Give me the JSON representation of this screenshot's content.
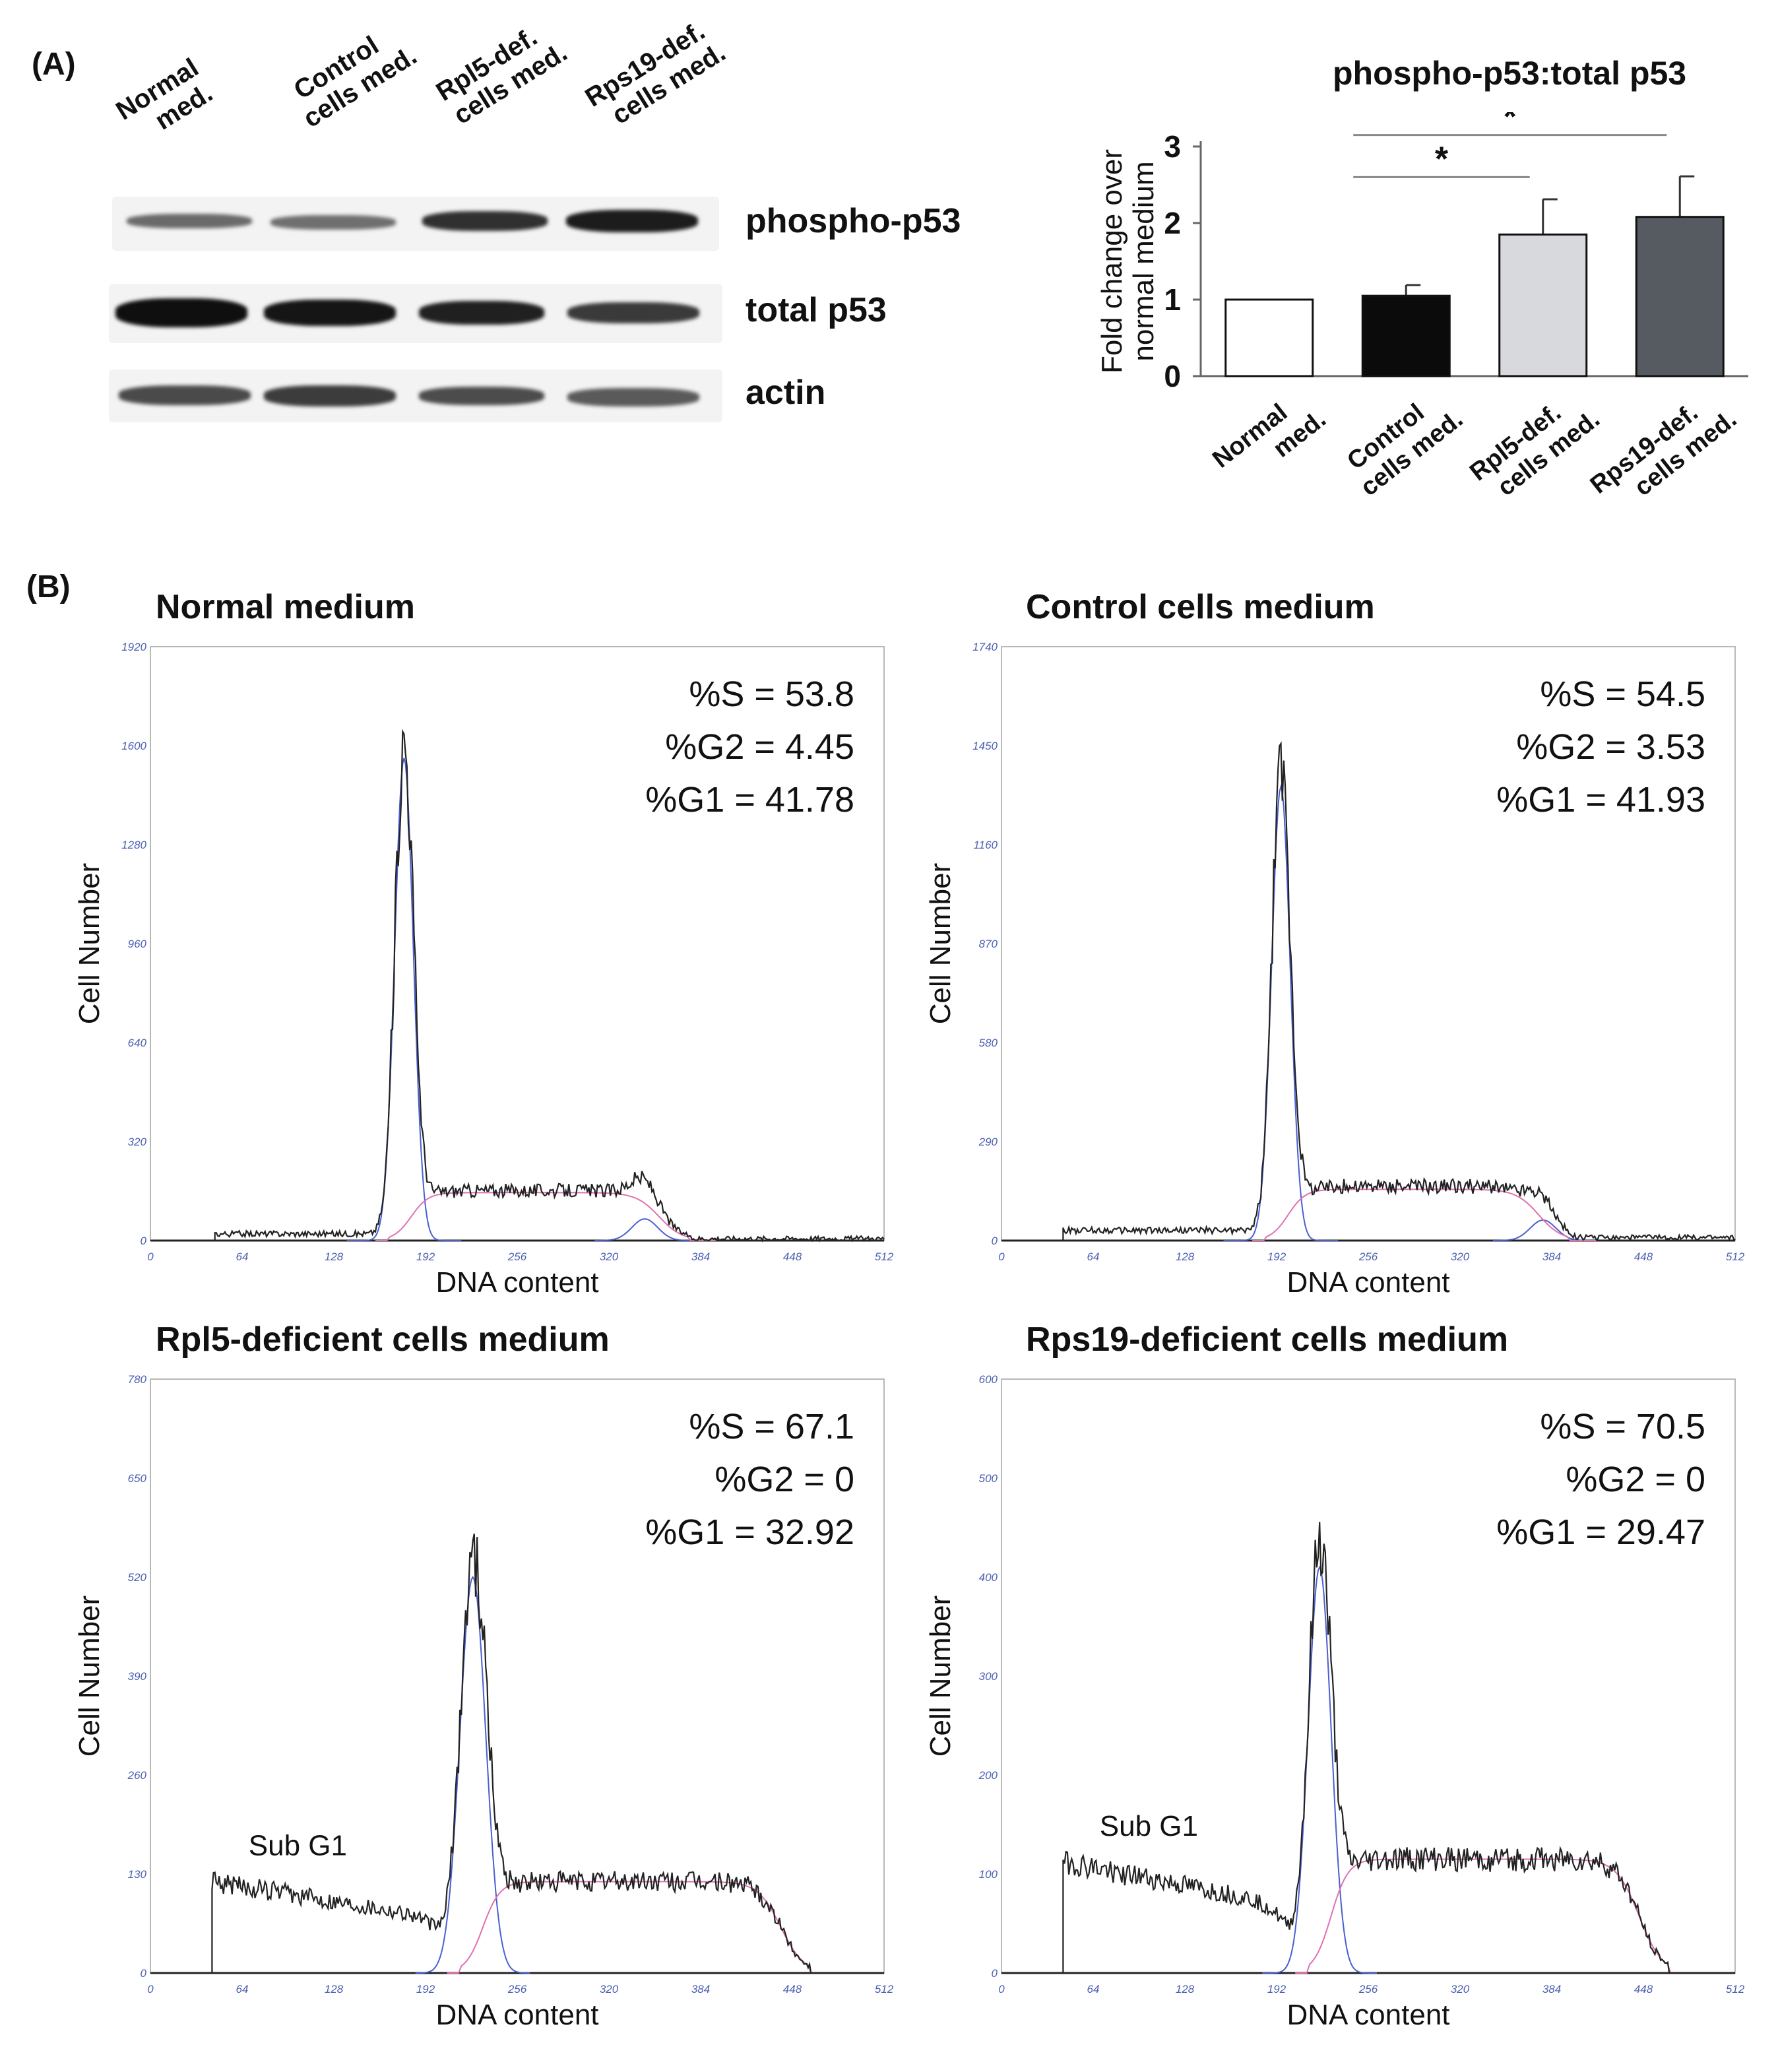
{
  "panel_a": {
    "label": "(A)",
    "western_blot": {
      "lanes": [
        {
          "line1": "Normal",
          "line2": "med."
        },
        {
          "line1": "Control",
          "line2": "cells med."
        },
        {
          "line1": "Rpl5-def.",
          "line2": "cells med."
        },
        {
          "line1": "Rps19-def.",
          "line2": "cells med."
        }
      ],
      "bands": [
        "phospho-p53",
        "total p53",
        "actin"
      ]
    }
  },
  "panel_b": {
    "label": "(B)"
  },
  "chart_data": [
    {
      "type": "bar",
      "title": "phospho-p53:total p53",
      "ylabel": "Fold change over normal medium",
      "ylabel_lines": [
        "Fold change over",
        "normal medium"
      ],
      "ylim": [
        0,
        3
      ],
      "yticks": [
        "0",
        "1",
        "2",
        "3"
      ],
      "categories": [
        {
          "line1": "Normal",
          "line2": "med."
        },
        {
          "line1": "Control",
          "line2": "cells med."
        },
        {
          "line1": "Rpl5-def.",
          "line2": "cells med."
        },
        {
          "line1": "Rps19-def.",
          "line2": "cells med."
        }
      ],
      "values": [
        1.0,
        1.05,
        1.85,
        2.08
      ],
      "errors": [
        0,
        0.14,
        0.46,
        0.53
      ],
      "colors": [
        "#ffffff",
        "#0b0b0b",
        "#d8d9dd",
        "#555b60"
      ],
      "significance": [
        {
          "from": 1,
          "to": 2,
          "label": "*",
          "level": 2.6
        },
        {
          "from": 1,
          "to": 3,
          "label": "*",
          "level": 3.15
        }
      ]
    },
    {
      "type": "line",
      "title": "Normal medium",
      "xlabel": "DNA content",
      "ylabel": "Cell Number",
      "xlim": [
        0,
        512
      ],
      "ylim": [
        0,
        1920
      ],
      "xticks": [
        "0",
        "64",
        "128",
        "192",
        "256",
        "320",
        "384",
        "448",
        "512"
      ],
      "yticks": [
        "0",
        "320",
        "640",
        "960",
        "1280",
        "1600",
        "1920"
      ],
      "stats": [
        "%S = 53.8",
        "%G2 = 4.45",
        "%G1 = 41.78"
      ],
      "subg1_label": "",
      "profile": {
        "start": 45,
        "base": 22,
        "subg1": 0,
        "g1_center": 177,
        "g1_sigma": 6.5,
        "g1_height": 1560,
        "s_level": 155,
        "s_start": 182,
        "s_end": 355,
        "g2_center": 345,
        "g2_height": 70,
        "end": 375
      }
    },
    {
      "type": "line",
      "title": "Control cells medium",
      "xlabel": "DNA content",
      "ylabel": "Cell Number",
      "xlim": [
        0,
        512
      ],
      "ylim": [
        0,
        1740
      ],
      "xticks": [
        "0",
        "64",
        "128",
        "192",
        "256",
        "320",
        "384",
        "448",
        "512"
      ],
      "yticks": [
        "0",
        "290",
        "580",
        "870",
        "1160",
        "1450",
        "1740"
      ],
      "stats": [
        "%S = 54.5",
        "%G2 = 3.53",
        "%G1 = 41.93"
      ],
      "subg1_label": "",
      "profile": {
        "start": 43,
        "base": 30,
        "subg1": 0,
        "g1_center": 195,
        "g1_sigma": 6.5,
        "g1_height": 1330,
        "s_level": 150,
        "s_start": 200,
        "s_end": 375,
        "g2_center": 378,
        "g2_height": 60,
        "end": 400
      }
    },
    {
      "type": "line",
      "title": "Rpl5-deficient cells medium",
      "xlabel": "DNA content",
      "ylabel": "Cell Number",
      "xlim": [
        0,
        512
      ],
      "ylim": [
        0,
        780
      ],
      "xticks": [
        "0",
        "64",
        "128",
        "192",
        "256",
        "320",
        "384",
        "448",
        "512"
      ],
      "yticks": [
        "0",
        "130",
        "260",
        "390",
        "520",
        "650",
        "780"
      ],
      "stats": [
        "%S = 67.1",
        "%G2 = 0",
        "%G1 = 32.92"
      ],
      "subg1_label": "Sub G1",
      "profile": {
        "start": 43,
        "base": 0,
        "subg1": 120,
        "g1_center": 225,
        "g1_sigma": 9,
        "g1_height": 520,
        "s_level": 120,
        "s_start": 232,
        "s_end": 440,
        "g2_center": 0,
        "g2_height": 0,
        "end": 470
      }
    },
    {
      "type": "line",
      "title": "Rps19-deficient cells medium",
      "xlabel": "DNA content",
      "ylabel": "Cell Number",
      "xlim": [
        0,
        512
      ],
      "ylim": [
        0,
        600
      ],
      "xticks": [
        "0",
        "64",
        "128",
        "192",
        "256",
        "320",
        "384",
        "448",
        "512"
      ],
      "yticks": [
        "0",
        "100",
        "200",
        "300",
        "400",
        "500",
        "600"
      ],
      "stats": [
        "%S = 70.5",
        "%G2 = 0",
        "%G1 = 29.47"
      ],
      "subg1_label": "Sub G1",
      "profile": {
        "start": 43,
        "base": 0,
        "subg1": 112,
        "g1_center": 222,
        "g1_sigma": 8,
        "g1_height": 410,
        "s_level": 115,
        "s_start": 230,
        "s_end": 445,
        "g2_center": 0,
        "g2_height": 0,
        "end": 470
      }
    }
  ]
}
